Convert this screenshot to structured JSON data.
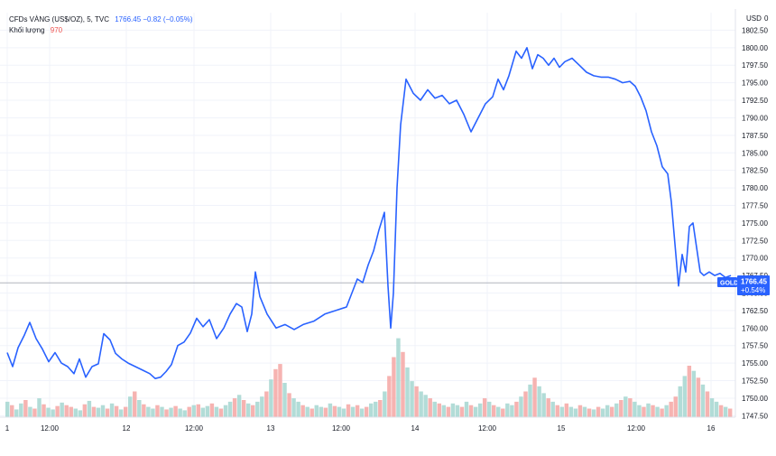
{
  "legend": {
    "symbol": "CFDs VÀNG (US$/OZ), 5, TVC",
    "price_info": "1766.45 −0.82 (−0.05%)",
    "volume_label": "Khối lượng",
    "volume_value": "970"
  },
  "price_axis": {
    "currency": "USD",
    "top_tick": "0"
  },
  "badge": {
    "symbol": "GOLD",
    "price": "1766.45",
    "change": "+0.54%"
  },
  "colors": {
    "line": "#2962ff",
    "badge": "#2962ff",
    "volume_up": "#a5d6d0",
    "volume_down": "#f4a6a3",
    "grid": "#f0f3fa",
    "last_price": "#b2b5be"
  },
  "chart_data": {
    "type": "line",
    "ylim": [
      1746,
      1805
    ],
    "y_ticks": [
      1747.5,
      1750,
      1752.5,
      1755,
      1757.5,
      1760,
      1762.5,
      1765,
      1767.5,
      1770,
      1772.5,
      1775,
      1777.5,
      1780,
      1782.5,
      1785,
      1787.5,
      1790,
      1792.5,
      1795,
      1797.5,
      1800,
      1802.5
    ],
    "y_tick_labels": [
      "1747.50",
      "1750.00",
      "1752.50",
      "1755.00",
      "1757.50",
      "1760.00",
      "1762.50",
      "1765.00",
      "1767.50",
      "1770.00",
      "1772.50",
      "1775.00",
      "1777.50",
      "1780.00",
      "1782.50",
      "1785.00",
      "1787.50",
      "1790.00",
      "1792.50",
      "1795.00",
      "1797.50",
      "1800.00",
      "1802.50"
    ],
    "x_range": [
      0,
      860
    ],
    "x_ticks": [
      {
        "pos": 8,
        "label": "1"
      },
      {
        "pos": 55,
        "label": "12:00"
      },
      {
        "pos": 140,
        "label": "12"
      },
      {
        "pos": 215,
        "label": "12:00"
      },
      {
        "pos": 300,
        "label": "13"
      },
      {
        "pos": 378,
        "label": "12:00"
      },
      {
        "pos": 460,
        "label": "14"
      },
      {
        "pos": 540,
        "label": "12:00"
      },
      {
        "pos": 622,
        "label": "15"
      },
      {
        "pos": 705,
        "label": "12:00"
      },
      {
        "pos": 788,
        "label": "16"
      }
    ],
    "last_price": 1766.45,
    "series": [
      {
        "x": [
          8,
          14,
          20,
          27,
          33,
          40,
          47,
          54,
          61,
          68,
          75,
          82,
          88,
          95,
          102,
          109,
          115,
          122,
          128,
          135,
          142,
          150,
          158,
          166,
          172,
          178,
          184,
          190,
          197,
          204,
          211,
          218,
          225,
          232,
          240,
          248,
          255,
          262,
          268,
          274,
          279,
          283,
          288,
          296,
          306,
          316,
          326,
          336,
          348,
          360,
          372,
          384,
          390,
          396,
          402,
          408,
          414,
          420,
          426,
          430,
          433,
          436,
          440,
          444,
          450,
          458,
          466,
          474,
          482,
          490,
          498,
          506,
          514,
          522,
          530,
          538,
          546,
          552,
          558,
          564,
          572,
          578,
          584,
          590,
          596,
          602,
          608,
          614,
          620,
          626,
          634,
          642,
          650,
          658,
          666,
          674,
          682,
          690,
          698,
          704,
          710,
          716,
          722,
          728,
          734,
          740,
          744,
          748,
          752,
          756,
          760,
          764,
          768,
          772,
          776,
          780,
          786,
          792,
          798,
          804,
          810
        ],
        "y": [
          1756.5,
          1754.5,
          1757.2,
          1759.0,
          1760.8,
          1758.5,
          1757.0,
          1755.2,
          1756.5,
          1755.0,
          1754.5,
          1753.5,
          1755.6,
          1753.0,
          1754.5,
          1754.9,
          1759.2,
          1758.3,
          1756.4,
          1755.6,
          1755.0,
          1754.5,
          1754.0,
          1753.5,
          1752.8,
          1753.0,
          1753.8,
          1754.8,
          1757.5,
          1758.0,
          1759.3,
          1761.4,
          1760.2,
          1761.2,
          1758.5,
          1760.0,
          1762.0,
          1763.5,
          1763.0,
          1759.5,
          1762.0,
          1768.0,
          1764.5,
          1762.0,
          1760.0,
          1760.5,
          1759.8,
          1760.5,
          1761.0,
          1762.0,
          1762.5,
          1763.0,
          1765.0,
          1767.0,
          1766.5,
          1769.0,
          1771.0,
          1774.0,
          1776.5,
          1766.0,
          1760.0,
          1765.0,
          1780.0,
          1789.0,
          1795.5,
          1793.5,
          1792.5,
          1794.0,
          1792.8,
          1793.2,
          1792.0,
          1792.5,
          1790.5,
          1788.0,
          1790.0,
          1792.0,
          1793.0,
          1795.5,
          1794.0,
          1796.0,
          1799.5,
          1798.5,
          1800.0,
          1797.0,
          1799.0,
          1798.5,
          1797.5,
          1798.5,
          1797.2,
          1798.0,
          1798.5,
          1797.5,
          1796.5,
          1796.0,
          1795.8,
          1795.8,
          1795.5,
          1795.0,
          1795.2,
          1794.5,
          1793.0,
          1791.0,
          1788.0,
          1786.0,
          1783.0,
          1782.0,
          1778.0,
          1772.0,
          1766.0,
          1770.5,
          1768.0,
          1774.5,
          1775.0,
          1771.5,
          1768.0,
          1767.5,
          1768.0,
          1767.5,
          1767.8,
          1767.2,
          1767.5
        ]
      }
    ],
    "volume": {
      "bar_count": 160,
      "max_value": 100,
      "values": [
        18,
        14,
        9,
        16,
        20,
        12,
        10,
        22,
        15,
        11,
        9,
        13,
        17,
        14,
        12,
        10,
        8,
        15,
        19,
        12,
        11,
        14,
        10,
        16,
        13,
        9,
        12,
        24,
        30,
        20,
        15,
        12,
        10,
        14,
        12,
        9,
        11,
        13,
        10,
        8,
        12,
        14,
        15,
        11,
        13,
        16,
        12,
        10,
        14,
        18,
        22,
        26,
        20,
        16,
        14,
        18,
        24,
        30,
        44,
        56,
        62,
        40,
        28,
        22,
        18,
        14,
        12,
        10,
        14,
        12,
        11,
        16,
        13,
        12,
        10,
        15,
        12,
        14,
        10,
        12,
        16,
        18,
        20,
        30,
        48,
        70,
        92,
        76,
        58,
        42,
        36,
        30,
        26,
        22,
        18,
        16,
        14,
        12,
        16,
        14,
        12,
        18,
        14,
        12,
        16,
        22,
        18,
        14,
        12,
        10,
        16,
        14,
        18,
        24,
        30,
        38,
        46,
        36,
        28,
        22,
        18,
        14,
        12,
        16,
        12,
        10,
        14,
        12,
        10,
        9,
        12,
        10,
        14,
        12,
        16,
        20,
        24,
        22,
        18,
        14,
        12,
        16,
        14,
        12,
        10,
        14,
        18,
        24,
        36,
        48,
        60,
        54,
        46,
        38,
        30,
        22,
        18,
        14,
        12,
        10
      ],
      "up_mask": [
        1,
        0,
        1,
        1,
        0,
        1,
        0,
        1,
        0,
        1,
        1,
        0,
        1,
        0,
        0,
        1,
        1,
        0,
        1,
        0,
        1,
        1,
        0,
        1,
        0,
        1,
        0,
        1,
        0,
        1,
        0,
        1,
        1,
        0,
        1,
        0,
        1,
        0,
        1,
        1,
        0,
        1,
        0,
        1,
        1,
        0,
        1,
        0,
        1,
        1,
        0,
        1,
        0,
        1,
        0,
        1,
        1,
        0,
        1,
        0,
        0,
        1,
        0,
        1,
        1,
        0,
        1,
        0,
        1,
        1,
        0,
        1,
        0,
        1,
        1,
        0,
        1,
        0,
        1,
        0,
        1,
        1,
        0,
        1,
        0,
        0,
        1,
        0,
        1,
        1,
        0,
        1,
        1,
        0,
        1,
        0,
        1,
        0,
        1,
        1,
        0,
        1,
        0,
        1,
        1,
        0,
        1,
        0,
        1,
        0,
        1,
        1,
        0,
        1,
        0,
        1,
        0,
        1,
        1,
        0,
        1,
        0,
        1,
        0,
        1,
        1,
        0,
        1,
        0,
        1,
        0,
        1,
        1,
        0,
        1,
        0,
        1,
        0,
        1,
        1,
        0,
        1,
        0,
        1,
        0,
        1,
        0,
        0,
        1,
        1,
        0,
        1,
        0,
        1,
        0,
        1,
        1,
        0,
        1,
        0
      ]
    }
  }
}
